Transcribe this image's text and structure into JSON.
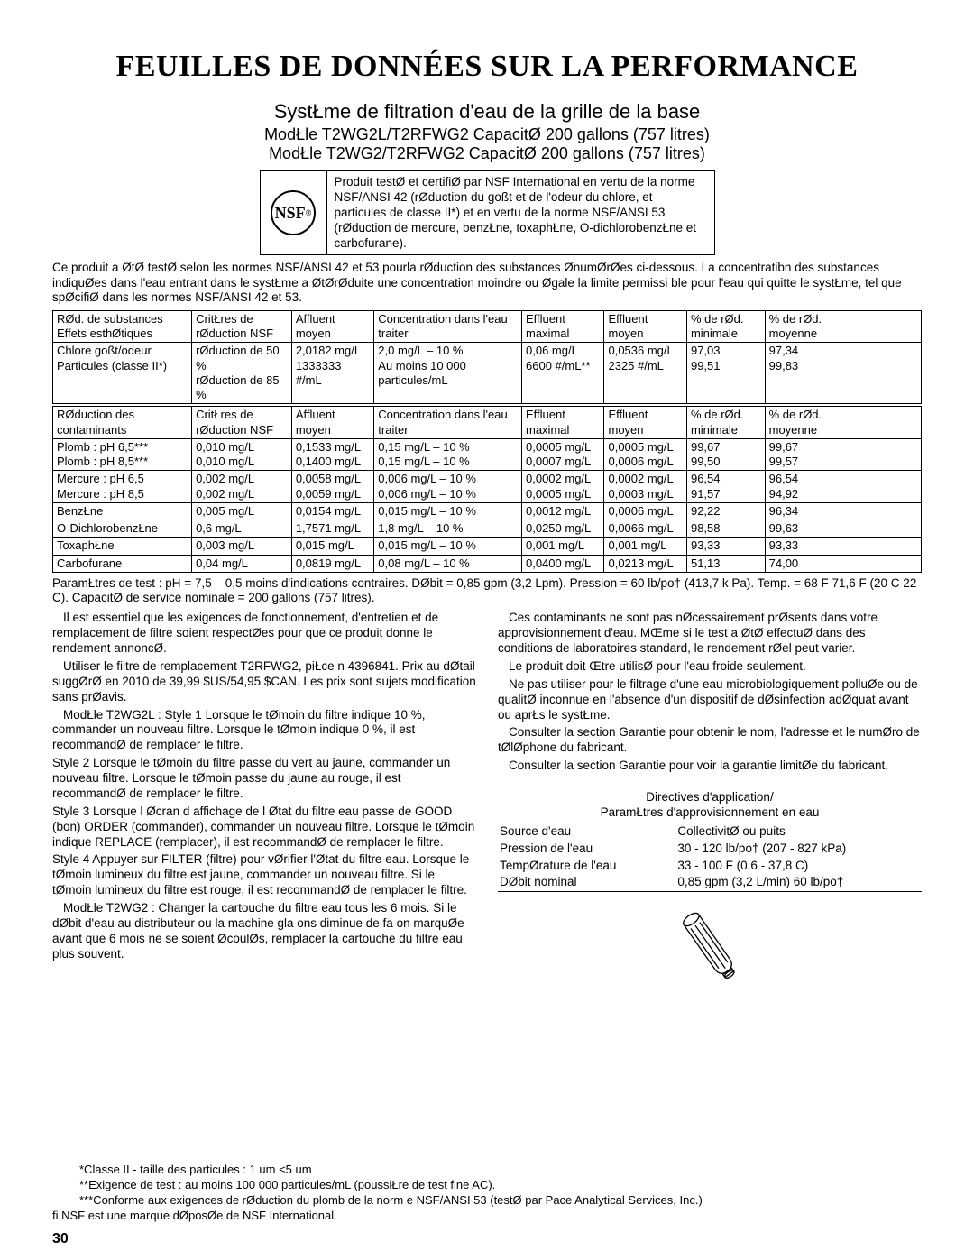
{
  "title": "FEUILLES DE DONNÉES SUR LA PERFORMANCE",
  "subtitle1": "SystŁme de filtration d'eau de la grille de la base",
  "subtitle2": "ModŁle T2WG2L/T2RFWG2 CapacitØ 200 gallons (757 litres)",
  "subtitle3": "ModŁle T2WG2/T2RFWG2 CapacitØ 200 gallons (757 litres)",
  "nsf_logo": "NSF",
  "nsf_sub": "®",
  "nsf_text": "Produit testØ et certifiØ par NSF International en vertu de la norme NSF/ANSI 42 (rØduction du goßt et de l'odeur du chlore, et particules de classe II*) et en vertu de la norme NSF/ANSI 53 (rØduction de mercure, benzŁne, toxaphŁne, O-dichlorobenzŁne et carbofurane).",
  "intro_para": "Ce produit a ØtØ testØ selon les normes NSF/ANSI 42 et 53 pourla rØduction des substances ØnumØrØes ci-dessous. La concentratibn des substances indiquØes dans l'eau entrant dans le systŁme a ØtØrØduite   une concentration moindre ou Øgale   la limite permissi ble pour l'eau qui quitte le systŁme, tel que spØcifiØ dans les normes NSF/ANSI 42 et 53.",
  "table1": {
    "headers": {
      "c1a": "RØd. de substances",
      "c1b": "Effets esthØtiques",
      "c2a": "CritŁres de",
      "c2b": "rØduction NSF",
      "c3a": "Affluent",
      "c3b": "moyen",
      "c4a": "Concentration dans l'eau",
      "c4b": "traiter",
      "c5a": "Effluent",
      "c5b": "maximal",
      "c6a": "Effluent",
      "c6b": "moyen",
      "c7a": "% de rØd.",
      "c7b": "minimale",
      "c8a": "% de rØd.",
      "c8b": "moyenne"
    },
    "rows": [
      [
        "Chlore goßt/odeur\nParticules (classe II*)",
        "rØduction de 50 %\nrØduction de 85 %",
        "2,0182 mg/L\n1333333 #/mL",
        "2,0 mg/L – 10 %\nAu moins 10 000 particules/mL",
        "0,06 mg/L\n6600 #/mL**",
        "0,0536 mg/L\n2325 #/mL",
        "97,03\n99,51",
        "97,34\n99,83"
      ]
    ]
  },
  "table2": {
    "headers": {
      "c1a": "RØduction des",
      "c1b": "contaminants",
      "c2a": "CritŁres de",
      "c2b": "rØduction NSF",
      "c3a": "Affluent",
      "c3b": "moyen",
      "c4a": "Concentration dans l'eau",
      "c4b": "traiter",
      "c5a": "Effluent",
      "c5b": "maximal",
      "c6a": "Effluent",
      "c6b": "moyen",
      "c7a": "% de rØd.",
      "c7b": "minimale",
      "c8a": "% de rØd.",
      "c8b": "moyenne"
    },
    "rows": [
      [
        "Plomb :   pH 6,5***\nPlomb :   pH 8,5***",
        "0,010 mg/L\n0,010 mg/L",
        "0,1533 mg/L\n0,1400 mg/L",
        "0,15 mg/L – 10 %\n0,15 mg/L – 10 %",
        "0,0005 mg/L\n0,0007 mg/L",
        "0,0005 mg/L\n0,0006 mg/L",
        "99,67\n99,50",
        "99,67\n99,57"
      ],
      [
        "Mercure :   pH 6,5\nMercure :   pH 8,5",
        "0,002 mg/L\n0,002 mg/L",
        "0,0058 mg/L\n0,0059 mg/L",
        "0,006 mg/L – 10 %\n0,006 mg/L – 10 %",
        "0,0002 mg/L\n0,0005 mg/L",
        "0,0002 mg/L\n0,0003 mg/L",
        "96,54\n91,57",
        "96,54\n94,92"
      ],
      [
        "BenzŁne",
        "0,005 mg/L",
        "0,0154 mg/L",
        "0,015 mg/L – 10 %",
        "0,0012 mg/L",
        "0,0006 mg/L",
        "92,22",
        "96,34"
      ],
      [
        "O-DichlorobenzŁne",
        "0,6 mg/L",
        "1,7571 mg/L",
        "1,8 mg/L – 10 %",
        "0,0250 mg/L",
        "0,0066 mg/L",
        "98,58",
        "99,63"
      ],
      [
        "ToxaphŁne",
        "0,003 mg/L",
        "0,015 mg/L",
        "0,015 mg/L – 10 %",
        "0,001 mg/L",
        "0,001 mg/L",
        "93,33",
        "93,33"
      ],
      [
        "Carbofurane",
        "0,04 mg/L",
        "0,0819 mg/L",
        "0,08 mg/L – 10 %",
        "0,0400 mg/L",
        "0,0213 mg/L",
        "51,13",
        "74,00"
      ]
    ]
  },
  "test_params": "ParamŁtres de test : pH = 7,5 – 0,5   moins d'indications contraires. DØbit = 0,85 gpm (3,2 Lpm). Pression = 60 lb/po† (413,7 k Pa). Temp. = 68 F   71,6 F (20 C   22 C). CapacitØ de service nominale = 200 gallons (757 litres).",
  "left_col": [
    "Il est essentiel que les exigences de fonctionnement, d'entretien et de remplacement de filtre soient respectØes pour que ce produit donne le rendement annoncØ.",
    "Utiliser le filtre de remplacement T2RFWG2, piŁce n  4396841. Prix au dØtail suggØrØ en 2010 de 39,99 $US/54,95 $CAN. Les prix sont sujets   modification sans prØavis.",
    "ModŁle T2WG2L : Style 1   Lorsque le tØmoin du filtre indique 10 %, commander un nouveau filtre. Lorsque le tØmoin indique 0 %, il est recommandØ de remplacer le filtre.",
    "Style 2   Lorsque le tØmoin du filtre passe du vert au jaune, commander un nouveau filtre. Lorsque le tØmoin passe du jaune au rouge, il est recommandØ de remplacer le filtre.",
    "Style 3   Lorsque l Øcran d affichage de l Øtat du filtre   eau passe de  GOOD  (bon)    ORDER  (commander), commander un nouveau filtre. Lorsque le tØmoin indique  REPLACE  (remplacer), il est recommandØ de remplacer le filtre.",
    "Style 4   Appuyer sur FILTER (filtre) pour vØrifier l'Øtat du filtre   eau. Lorsque le tØmoin lumineux du filtre est jaune, commander un nouveau filtre. Si le tØmoin lumineux du filtre est rouge, il est recommandØ de remplacer le filtre.",
    "ModŁle T2WG2 : Changer la cartouche du filtre   eau tous les 6 mois. Si le dØbit d'eau au distributeur ou   la machine gla ons diminue de fa on marquØe avant que 6 mois ne se soient ØcoulØs, remplacer la cartouche du filtre   eau plus souvent."
  ],
  "right_col": [
    "Ces contaminants ne sont pas nØcessairement prØsents dans votre approvisionnement d'eau. MŒme si le test a ØtØ effectuØ dans des conditions de laboratoires standard, le rendement rØel peut varier.",
    "Le produit doit Œtre utilisØ pour l'eau froide seulement.",
    "Ne pas utiliser pour le filtrage d'une eau microbiologiquement polluØe ou de qualitØ inconnue en l'absence d'un dispositif de dØsinfection adØquat avant ou aprŁs le systŁme.",
    "Consulter la section  Garantie  pour obtenir le nom, l'adresse et le numØro de tØlØphone du fabricant.",
    "Consulter la section  Garantie  pour voir la garantie limitØe du fabricant."
  ],
  "app_title1": "Directives d'application/",
  "app_title2": "ParamŁtres d'approvisionnement en eau",
  "app_table": [
    [
      "Source d'eau",
      "CollectivitØ ou puits"
    ],
    [
      "Pression de l'eau",
      "30 - 120 lb/po† (207 - 827 kPa)"
    ],
    [
      "TempØrature de l'eau",
      "33  - 100 F (0,6  - 37,8 C)"
    ],
    [
      "DØbit nominal",
      "0,85 gpm (3,2 L/min)   60 lb/po†"
    ]
  ],
  "footnotes": [
    "*Classe II - taille des particules : 1 um   <5 um",
    "**Exigence de test : au moins 100 000 particules/mL (poussiŁre de test fine AC).",
    "***Conforme aux exigences de rØduction du plomb de la norm e NSF/ANSI 53 (testØ par Pace Analytical Services, Inc.)"
  ],
  "trademark": "fi NSF est une marque dØposØe de NSF International.",
  "page_number": "30"
}
